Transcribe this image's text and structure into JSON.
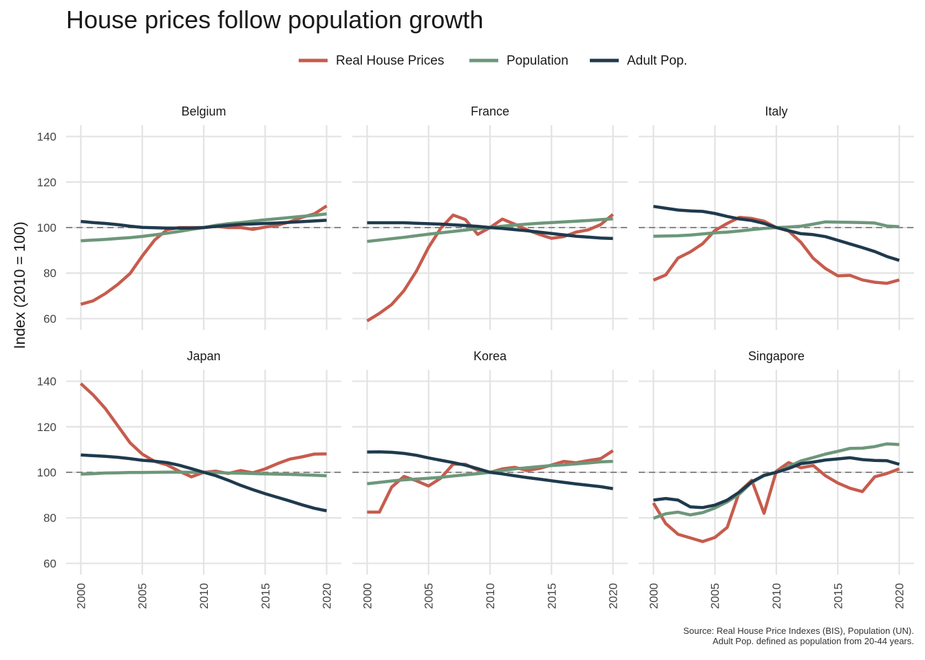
{
  "chart_data": {
    "type": "line",
    "title": "House prices follow population growth",
    "ylabel": "Index (2010 = 100)",
    "xlabel": "",
    "ylim": [
      55,
      145
    ],
    "xlim": [
      1998.8,
      2021.2
    ],
    "yticks": [
      60,
      80,
      100,
      120,
      140
    ],
    "xticks": [
      2000,
      2005,
      2010,
      2015,
      2020
    ],
    "reference_line": 100,
    "grid": true,
    "legend_position": "top",
    "caption": [
      "Source: Real House Price Indexes (BIS), Population (UN).",
      "Adult Pop. defined as population from 20-44 years."
    ],
    "series_meta": [
      {
        "key": "prices",
        "name": "Real House Prices",
        "color": "#c65c4d"
      },
      {
        "key": "pop",
        "name": "Population",
        "color": "#6d977a"
      },
      {
        "key": "adult",
        "name": "Adult Pop.",
        "color": "#1f3a4d"
      }
    ],
    "x": [
      2000,
      2001,
      2002,
      2003,
      2004,
      2005,
      2006,
      2007,
      2008,
      2009,
      2010,
      2011,
      2012,
      2013,
      2014,
      2015,
      2016,
      2017,
      2018,
      2019,
      2020
    ],
    "panels": [
      {
        "name": "Belgium",
        "prices": [
          66.3,
          67.8,
          71,
          75,
          79.8,
          87.5,
          94.5,
          99,
          100,
          100,
          100,
          100.5,
          100,
          100,
          99.2,
          100.2,
          101,
          102.5,
          104.5,
          106,
          109.5
        ],
        "pop": [
          94.2,
          94.5,
          94.8,
          95.2,
          95.6,
          96.1,
          96.8,
          97.5,
          98.3,
          99.2,
          100,
          101,
          101.7,
          102.2,
          102.8,
          103.4,
          103.9,
          104.4,
          104.9,
          105.4,
          106
        ],
        "adult": [
          102.7,
          102.2,
          101.8,
          101.3,
          100.6,
          100.1,
          99.9,
          99.8,
          99.8,
          99.8,
          100,
          100.5,
          101,
          101.4,
          101.6,
          101.8,
          102,
          102.3,
          102.6,
          102.9,
          103.2
        ]
      },
      {
        "name": "France",
        "prices": [
          59,
          62.3,
          66.2,
          72.3,
          80.8,
          91.3,
          99.8,
          105.5,
          103.5,
          97,
          100,
          103.7,
          101.5,
          99,
          97,
          95.3,
          96,
          98,
          99,
          101.3,
          105.8
        ],
        "pop": [
          93.9,
          94.5,
          95.1,
          95.7,
          96.4,
          97.1,
          97.7,
          98.3,
          98.9,
          99.5,
          100,
          100.6,
          101.1,
          101.5,
          101.9,
          102.2,
          102.5,
          102.8,
          103.1,
          103.5,
          103.8
        ],
        "adult": [
          102.1,
          102.1,
          102.1,
          102.1,
          101.9,
          101.7,
          101.5,
          101.2,
          100.9,
          100.5,
          100,
          99.6,
          99.1,
          98.6,
          98,
          97.4,
          96.8,
          96.2,
          95.8,
          95.4,
          95.2
        ]
      },
      {
        "name": "Italy",
        "prices": [
          76.9,
          79.2,
          86.6,
          89.3,
          92.9,
          98.7,
          101.8,
          104.5,
          104,
          102.8,
          100,
          98.5,
          93.5,
          86.5,
          82,
          78.8,
          79,
          77,
          76,
          75.5,
          77
        ],
        "pop": [
          96.2,
          96.3,
          96.4,
          96.7,
          97.2,
          97.7,
          98,
          98.5,
          99.1,
          99.6,
          100,
          100.2,
          100.6,
          101.5,
          102.5,
          102.4,
          102.3,
          102.2,
          102,
          100.7,
          100.4
        ],
        "adult": [
          109.3,
          108.5,
          107.7,
          107.3,
          107.1,
          106.2,
          104.9,
          103.8,
          103.1,
          101.8,
          100,
          98.6,
          97.3,
          96.9,
          96,
          94.4,
          92.8,
          91.2,
          89.5,
          87.3,
          85.6
        ]
      },
      {
        "name": "Japan",
        "prices": [
          139,
          134,
          128,
          120.5,
          113,
          108,
          104.8,
          103.3,
          100.5,
          98,
          100,
          100.5,
          99.5,
          100.8,
          99.8,
          101.5,
          103.8,
          105.8,
          106.8,
          108,
          108.1
        ],
        "pop": [
          99.2,
          99.4,
          99.7,
          99.8,
          99.9,
          99.9,
          100,
          100.1,
          100.1,
          100,
          100,
          99.9,
          99.7,
          99.6,
          99.5,
          99.3,
          99.2,
          99.1,
          98.9,
          98.7,
          98.5
        ],
        "adult": [
          107.6,
          107.3,
          107,
          106.6,
          106,
          105.3,
          104.9,
          104.3,
          103.1,
          101.6,
          100,
          98.5,
          96.5,
          94.3,
          92.4,
          90.6,
          89,
          87.4,
          85.7,
          84.2,
          83.1
        ]
      },
      {
        "name": "Korea",
        "prices": [
          82.5,
          82.5,
          93.5,
          98.2,
          96.3,
          94,
          97.5,
          103.6,
          103.5,
          101,
          100,
          101.5,
          102.2,
          100.8,
          101.7,
          103.2,
          104.8,
          104.2,
          105.2,
          106,
          109.5
        ],
        "pop": [
          95,
          95.6,
          96.2,
          96.7,
          97,
          97.4,
          97.8,
          98.4,
          98.9,
          99.4,
          100,
          100.8,
          101.5,
          102,
          102.5,
          103,
          103.3,
          103.7,
          104.1,
          104.6,
          104.8
        ],
        "adult": [
          108.9,
          109,
          108.8,
          108.3,
          107.5,
          106.3,
          105.3,
          104.3,
          103.1,
          101.6,
          100,
          99.3,
          98.5,
          97.7,
          97,
          96.3,
          95.6,
          94.9,
          94.3,
          93.7,
          92.8
        ]
      },
      {
        "name": "Singapore",
        "prices": [
          86.5,
          77.5,
          72.8,
          71.2,
          69.6,
          71.4,
          75.8,
          91.5,
          96.5,
          82,
          100.5,
          104.3,
          102,
          103,
          98.5,
          95.3,
          93,
          91.5,
          98,
          99.5,
          101.5
        ],
        "pop": [
          79.8,
          81.8,
          82.5,
          81.3,
          82.3,
          84.3,
          87,
          90.5,
          95.6,
          98.5,
          100,
          102.5,
          105,
          106.5,
          108,
          109.2,
          110.5,
          110.6,
          111.3,
          112.5,
          112.2
        ],
        "adult": [
          87.8,
          88.5,
          87.8,
          84.8,
          84.5,
          85.6,
          87.8,
          91.3,
          95.8,
          98.7,
          100,
          101.7,
          103.8,
          104.5,
          105.4,
          105.9,
          106.4,
          105.6,
          105.2,
          105.1,
          103.5
        ]
      }
    ]
  }
}
